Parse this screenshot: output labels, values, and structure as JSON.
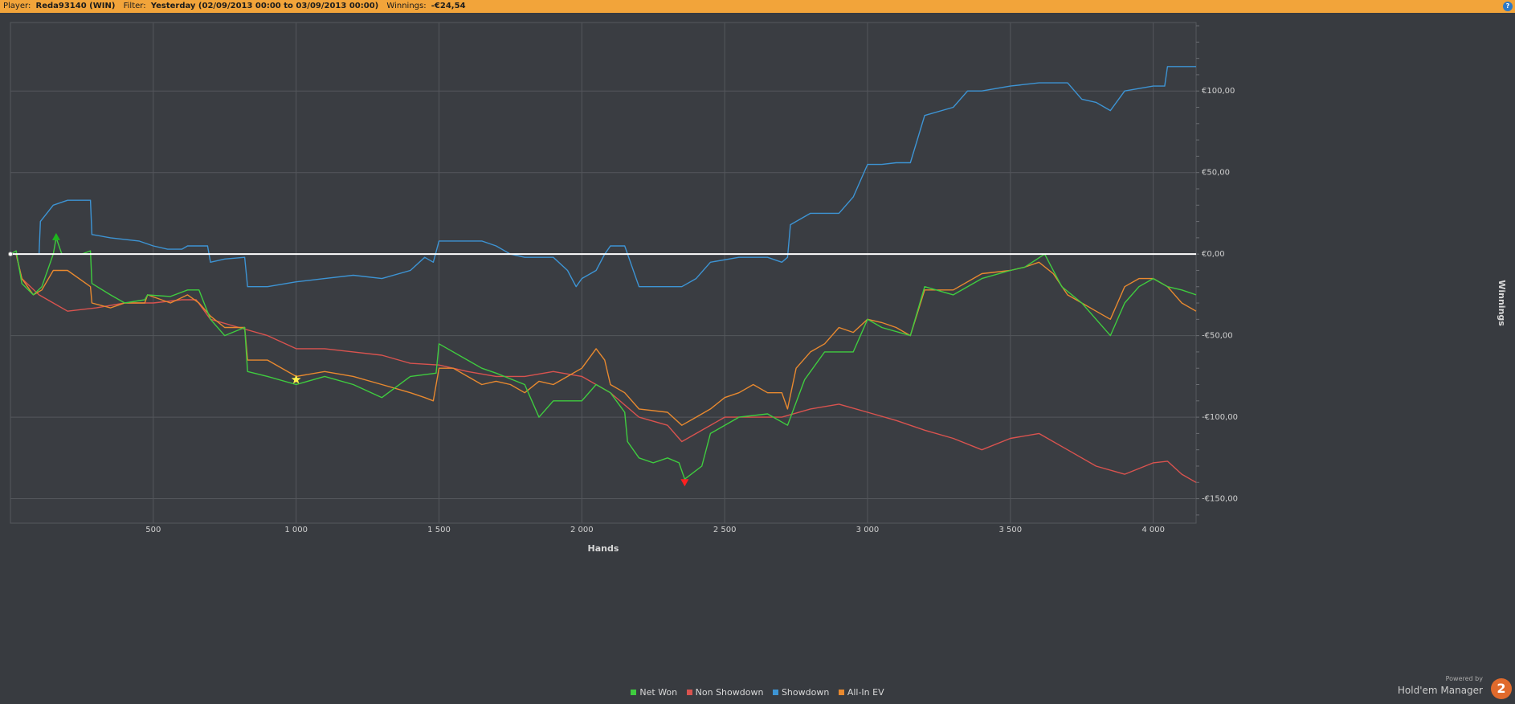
{
  "header": {
    "player_label": "Player:",
    "player_value": "Reda93140 (WIN)",
    "filter_label": "Filter:",
    "filter_value": "Yesterday (02/09/2013 00:00 to 03/09/2013 00:00)",
    "winnings_label": "Winnings:",
    "winnings_value": "-€24,54",
    "help_icon": "?"
  },
  "colors": {
    "background": "#383b40",
    "header": "#f2a43a",
    "net_won": "#3fcc3f",
    "non_showdown": "#d9534f",
    "showdown": "#3d94d4",
    "all_in_ev": "#e8892f",
    "zero_line": "#ffffff"
  },
  "chart_data": {
    "type": "line",
    "xlabel": "Hands",
    "ylabel": "Winnings",
    "xlim": [
      0,
      4150
    ],
    "ylim": [
      -165,
      142
    ],
    "x_ticks": [
      500,
      1000,
      1500,
      2000,
      2500,
      3000,
      3500,
      4000
    ],
    "x_tick_labels": [
      "500",
      "1 000",
      "1 500",
      "2 000",
      "2 500",
      "3 000",
      "3 500",
      "4 000"
    ],
    "y_ticks": [
      100,
      50,
      0,
      -50,
      -100,
      -150
    ],
    "y_tick_labels": [
      "€100,00",
      "€50,00",
      "€0,00",
      "-€50,00",
      "-€100,00",
      "-€150,00"
    ],
    "grid": true,
    "legend_position": "bottom-center",
    "series": [
      {
        "name": "Net Won",
        "color": "#3fcc3f",
        "points": [
          [
            0,
            0
          ],
          [
            20,
            2
          ],
          [
            40,
            -18
          ],
          [
            80,
            -25
          ],
          [
            110,
            -20
          ],
          [
            150,
            0
          ],
          [
            160,
            10
          ],
          [
            180,
            0
          ],
          [
            250,
            0
          ],
          [
            280,
            2
          ],
          [
            285,
            -18
          ],
          [
            350,
            -25
          ],
          [
            400,
            -30
          ],
          [
            470,
            -28
          ],
          [
            480,
            -25
          ],
          [
            560,
            -26
          ],
          [
            620,
            -22
          ],
          [
            660,
            -22
          ],
          [
            700,
            -40
          ],
          [
            750,
            -50
          ],
          [
            820,
            -45
          ],
          [
            830,
            -72
          ],
          [
            900,
            -75
          ],
          [
            1000,
            -80
          ],
          [
            1100,
            -75
          ],
          [
            1200,
            -80
          ],
          [
            1300,
            -88
          ],
          [
            1400,
            -75
          ],
          [
            1490,
            -73
          ],
          [
            1500,
            -55
          ],
          [
            1600,
            -65
          ],
          [
            1650,
            -70
          ],
          [
            1700,
            -73
          ],
          [
            1800,
            -80
          ],
          [
            1850,
            -100
          ],
          [
            1900,
            -90
          ],
          [
            1950,
            -90
          ],
          [
            2000,
            -90
          ],
          [
            2050,
            -80
          ],
          [
            2100,
            -85
          ],
          [
            2150,
            -97
          ],
          [
            2160,
            -115
          ],
          [
            2200,
            -125
          ],
          [
            2250,
            -128
          ],
          [
            2300,
            -125
          ],
          [
            2340,
            -128
          ],
          [
            2360,
            -138
          ],
          [
            2420,
            -130
          ],
          [
            2450,
            -110
          ],
          [
            2550,
            -100
          ],
          [
            2650,
            -98
          ],
          [
            2720,
            -105
          ],
          [
            2780,
            -77
          ],
          [
            2850,
            -60
          ],
          [
            2950,
            -60
          ],
          [
            3000,
            -40
          ],
          [
            3050,
            -45
          ],
          [
            3150,
            -50
          ],
          [
            3200,
            -20
          ],
          [
            3300,
            -25
          ],
          [
            3400,
            -15
          ],
          [
            3500,
            -10
          ],
          [
            3550,
            -8
          ],
          [
            3620,
            0
          ],
          [
            3680,
            -20
          ],
          [
            3750,
            -30
          ],
          [
            3800,
            -40
          ],
          [
            3850,
            -50
          ],
          [
            3900,
            -30
          ],
          [
            3950,
            -20
          ],
          [
            4000,
            -15
          ],
          [
            4050,
            -20
          ],
          [
            4100,
            -22
          ],
          [
            4150,
            -25
          ]
        ]
      },
      {
        "name": "Non Showdown",
        "color": "#d9534f",
        "points": [
          [
            0,
            0
          ],
          [
            20,
            0
          ],
          [
            40,
            -15
          ],
          [
            100,
            -25
          ],
          [
            150,
            -30
          ],
          [
            200,
            -35
          ],
          [
            300,
            -33
          ],
          [
            400,
            -30
          ],
          [
            500,
            -30
          ],
          [
            600,
            -28
          ],
          [
            650,
            -28
          ],
          [
            700,
            -40
          ],
          [
            800,
            -45
          ],
          [
            900,
            -50
          ],
          [
            1000,
            -58
          ],
          [
            1100,
            -58
          ],
          [
            1200,
            -60
          ],
          [
            1300,
            -62
          ],
          [
            1400,
            -67
          ],
          [
            1500,
            -68
          ],
          [
            1600,
            -72
          ],
          [
            1700,
            -75
          ],
          [
            1800,
            -75
          ],
          [
            1900,
            -72
          ],
          [
            2000,
            -75
          ],
          [
            2100,
            -85
          ],
          [
            2200,
            -100
          ],
          [
            2300,
            -105
          ],
          [
            2350,
            -115
          ],
          [
            2400,
            -110
          ],
          [
            2500,
            -100
          ],
          [
            2600,
            -100
          ],
          [
            2700,
            -100
          ],
          [
            2800,
            -95
          ],
          [
            2900,
            -92
          ],
          [
            3000,
            -97
          ],
          [
            3100,
            -102
          ],
          [
            3200,
            -108
          ],
          [
            3300,
            -113
          ],
          [
            3400,
            -120
          ],
          [
            3500,
            -113
          ],
          [
            3600,
            -110
          ],
          [
            3700,
            -120
          ],
          [
            3800,
            -130
          ],
          [
            3900,
            -135
          ],
          [
            4000,
            -128
          ],
          [
            4050,
            -127
          ],
          [
            4100,
            -135
          ],
          [
            4150,
            -140
          ]
        ]
      },
      {
        "name": "Showdown",
        "color": "#3d94d4",
        "points": [
          [
            0,
            0
          ],
          [
            20,
            0
          ],
          [
            100,
            0
          ],
          [
            105,
            20
          ],
          [
            150,
            30
          ],
          [
            200,
            33
          ],
          [
            280,
            33
          ],
          [
            285,
            12
          ],
          [
            350,
            10
          ],
          [
            450,
            8
          ],
          [
            500,
            5
          ],
          [
            550,
            3
          ],
          [
            600,
            3
          ],
          [
            620,
            5
          ],
          [
            690,
            5
          ],
          [
            700,
            -5
          ],
          [
            750,
            -3
          ],
          [
            820,
            -2
          ],
          [
            830,
            -20
          ],
          [
            900,
            -20
          ],
          [
            1000,
            -17
          ],
          [
            1100,
            -15
          ],
          [
            1200,
            -13
          ],
          [
            1300,
            -15
          ],
          [
            1400,
            -10
          ],
          [
            1450,
            -2
          ],
          [
            1480,
            -5
          ],
          [
            1500,
            8
          ],
          [
            1550,
            8
          ],
          [
            1650,
            8
          ],
          [
            1700,
            5
          ],
          [
            1750,
            0
          ],
          [
            1800,
            -2
          ],
          [
            1900,
            -2
          ],
          [
            1950,
            -10
          ],
          [
            1980,
            -20
          ],
          [
            2000,
            -15
          ],
          [
            2050,
            -10
          ],
          [
            2080,
            0
          ],
          [
            2100,
            5
          ],
          [
            2150,
            5
          ],
          [
            2200,
            -20
          ],
          [
            2300,
            -20
          ],
          [
            2350,
            -20
          ],
          [
            2400,
            -15
          ],
          [
            2450,
            -5
          ],
          [
            2550,
            -2
          ],
          [
            2650,
            -2
          ],
          [
            2700,
            -5
          ],
          [
            2720,
            -2
          ],
          [
            2730,
            18
          ],
          [
            2800,
            25
          ],
          [
            2900,
            25
          ],
          [
            2950,
            35
          ],
          [
            3000,
            55
          ],
          [
            3050,
            55
          ],
          [
            3100,
            56
          ],
          [
            3150,
            56
          ],
          [
            3200,
            85
          ],
          [
            3300,
            90
          ],
          [
            3350,
            100
          ],
          [
            3400,
            100
          ],
          [
            3500,
            103
          ],
          [
            3600,
            105
          ],
          [
            3700,
            105
          ],
          [
            3750,
            95
          ],
          [
            3800,
            93
          ],
          [
            3850,
            88
          ],
          [
            3900,
            100
          ],
          [
            4000,
            103
          ],
          [
            4040,
            103
          ],
          [
            4050,
            115
          ],
          [
            4150,
            115
          ]
        ]
      },
      {
        "name": "All-In EV",
        "color": "#e8892f",
        "points": [
          [
            0,
            0
          ],
          [
            20,
            0
          ],
          [
            40,
            -15
          ],
          [
            80,
            -25
          ],
          [
            110,
            -22
          ],
          [
            150,
            -10
          ],
          [
            200,
            -10
          ],
          [
            280,
            -20
          ],
          [
            285,
            -30
          ],
          [
            350,
            -33
          ],
          [
            400,
            -30
          ],
          [
            470,
            -30
          ],
          [
            480,
            -25
          ],
          [
            560,
            -30
          ],
          [
            620,
            -25
          ],
          [
            660,
            -30
          ],
          [
            700,
            -38
          ],
          [
            750,
            -45
          ],
          [
            820,
            -45
          ],
          [
            830,
            -65
          ],
          [
            900,
            -65
          ],
          [
            1000,
            -75
          ],
          [
            1100,
            -72
          ],
          [
            1200,
            -75
          ],
          [
            1300,
            -80
          ],
          [
            1400,
            -85
          ],
          [
            1450,
            -88
          ],
          [
            1480,
            -90
          ],
          [
            1500,
            -70
          ],
          [
            1550,
            -70
          ],
          [
            1600,
            -75
          ],
          [
            1650,
            -80
          ],
          [
            1700,
            -78
          ],
          [
            1750,
            -80
          ],
          [
            1800,
            -85
          ],
          [
            1850,
            -78
          ],
          [
            1900,
            -80
          ],
          [
            1950,
            -75
          ],
          [
            2000,
            -70
          ],
          [
            2050,
            -58
          ],
          [
            2080,
            -65
          ],
          [
            2100,
            -80
          ],
          [
            2150,
            -85
          ],
          [
            2200,
            -95
          ],
          [
            2300,
            -97
          ],
          [
            2350,
            -105
          ],
          [
            2400,
            -100
          ],
          [
            2450,
            -95
          ],
          [
            2500,
            -88
          ],
          [
            2550,
            -85
          ],
          [
            2600,
            -80
          ],
          [
            2650,
            -85
          ],
          [
            2700,
            -85
          ],
          [
            2720,
            -95
          ],
          [
            2750,
            -70
          ],
          [
            2800,
            -60
          ],
          [
            2850,
            -55
          ],
          [
            2900,
            -45
          ],
          [
            2950,
            -48
          ],
          [
            3000,
            -40
          ],
          [
            3050,
            -42
          ],
          [
            3100,
            -45
          ],
          [
            3150,
            -50
          ],
          [
            3200,
            -22
          ],
          [
            3300,
            -22
          ],
          [
            3400,
            -12
          ],
          [
            3500,
            -10
          ],
          [
            3550,
            -8
          ],
          [
            3600,
            -5
          ],
          [
            3650,
            -12
          ],
          [
            3700,
            -25
          ],
          [
            3750,
            -30
          ],
          [
            3800,
            -35
          ],
          [
            3850,
            -40
          ],
          [
            3900,
            -20
          ],
          [
            3950,
            -15
          ],
          [
            4000,
            -15
          ],
          [
            4050,
            -20
          ],
          [
            4100,
            -30
          ],
          [
            4150,
            -35
          ]
        ]
      }
    ],
    "markers": [
      {
        "series": "Net Won",
        "kind": "triangle-up",
        "x": 160,
        "y": 10,
        "color": "#1db51d"
      },
      {
        "series": "All-In EV",
        "kind": "star",
        "x": 1000,
        "y": -77,
        "color": "#fff34a"
      },
      {
        "series": "Net Won",
        "kind": "triangle-down",
        "x": 2360,
        "y": -140,
        "color": "#ff2020"
      }
    ]
  },
  "legend": {
    "items": [
      {
        "label": "Net Won",
        "color": "#3fcc3f"
      },
      {
        "label": "Non Showdown",
        "color": "#d9534f"
      },
      {
        "label": "Showdown",
        "color": "#3d94d4"
      },
      {
        "label": "All-In EV",
        "color": "#e8892f"
      }
    ]
  },
  "branding": {
    "powered_by": "Powered by",
    "product": "Hold'em Manager",
    "logo_text": "2"
  }
}
